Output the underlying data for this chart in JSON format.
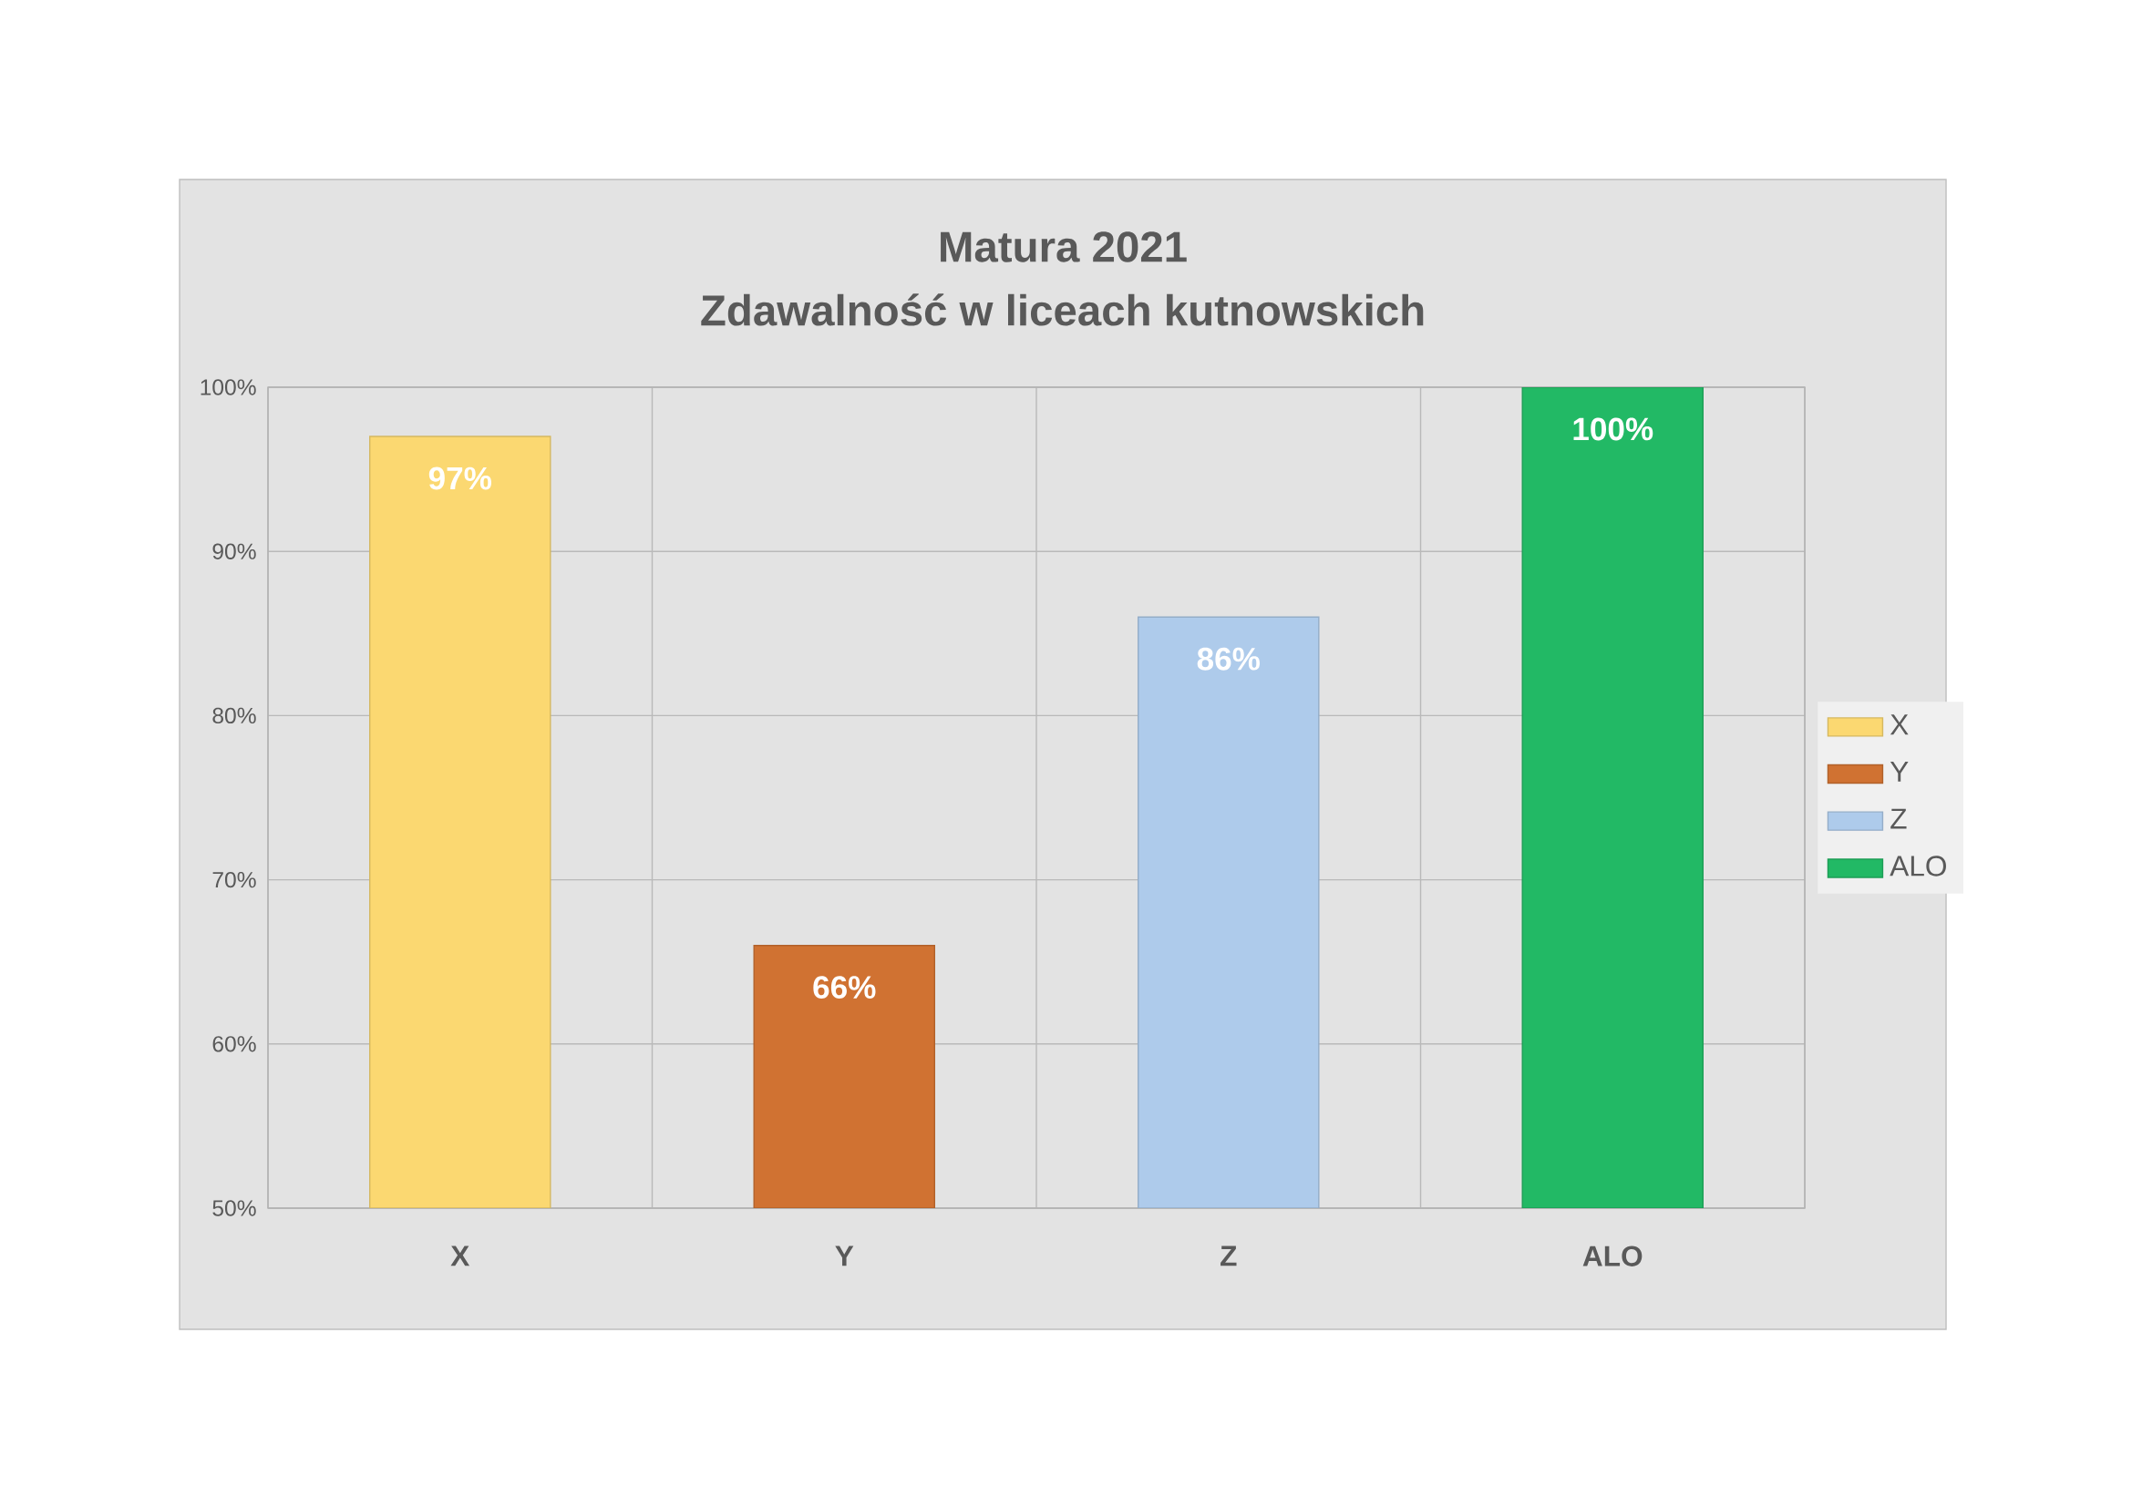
{
  "chart_data": {
    "type": "bar",
    "title": "Matura 2021",
    "subtitle": "Zdawalność w liceach kutnowskich",
    "categories": [
      "X",
      "Y",
      "Z",
      "ALO"
    ],
    "series": [
      {
        "name": "X",
        "color": "#fbd871",
        "values": [
          97,
          null,
          null,
          null
        ],
        "value_labels": [
          "97%",
          null,
          null,
          null
        ]
      },
      {
        "name": "Y",
        "color": "#d07232",
        "values": [
          null,
          66,
          null,
          null
        ],
        "value_labels": [
          null,
          "66%",
          null,
          null
        ]
      },
      {
        "name": "Z",
        "color": "#aecbeb",
        "values": [
          null,
          null,
          86,
          null
        ],
        "value_labels": [
          null,
          null,
          "86%",
          null
        ]
      },
      {
        "name": "ALO",
        "color": "#22b965",
        "values": [
          null,
          null,
          null,
          100
        ],
        "value_labels": [
          null,
          null,
          null,
          "100%"
        ]
      }
    ],
    "ylim": [
      50,
      100
    ],
    "yticks": [
      {
        "value": 50,
        "label": "50%"
      },
      {
        "value": 60,
        "label": "60%"
      },
      {
        "value": 70,
        "label": "70%"
      },
      {
        "value": 80,
        "label": "80%"
      },
      {
        "value": 90,
        "label": "90%"
      },
      {
        "value": 100,
        "label": "100%"
      }
    ],
    "grid": true,
    "legend": "right"
  }
}
